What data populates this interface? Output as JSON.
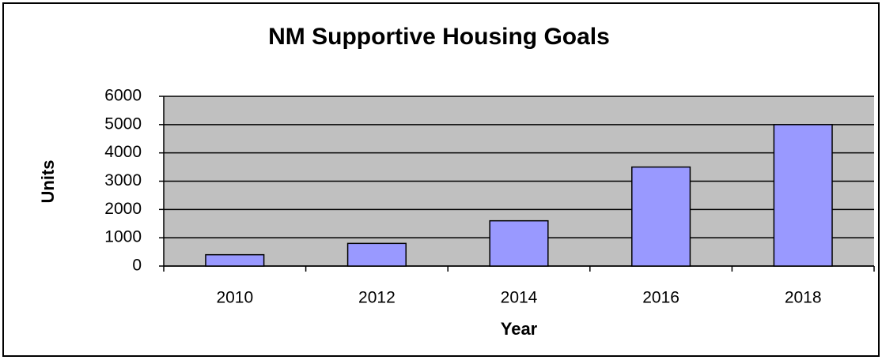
{
  "chart_data": {
    "type": "bar",
    "title": "NM Supportive Housing Goals",
    "x_label": "Year",
    "y_label": "Units",
    "categories": [
      "2010",
      "2012",
      "2014",
      "2016",
      "2018"
    ],
    "values": [
      400,
      800,
      1600,
      3500,
      5000
    ],
    "color": "#9999ff",
    "plot_background": "#c0c0c0",
    "ylim": [
      0,
      6000
    ],
    "yticks": [
      0,
      1000,
      2000,
      3000,
      4000,
      5000,
      6000
    ],
    "grid": true
  }
}
